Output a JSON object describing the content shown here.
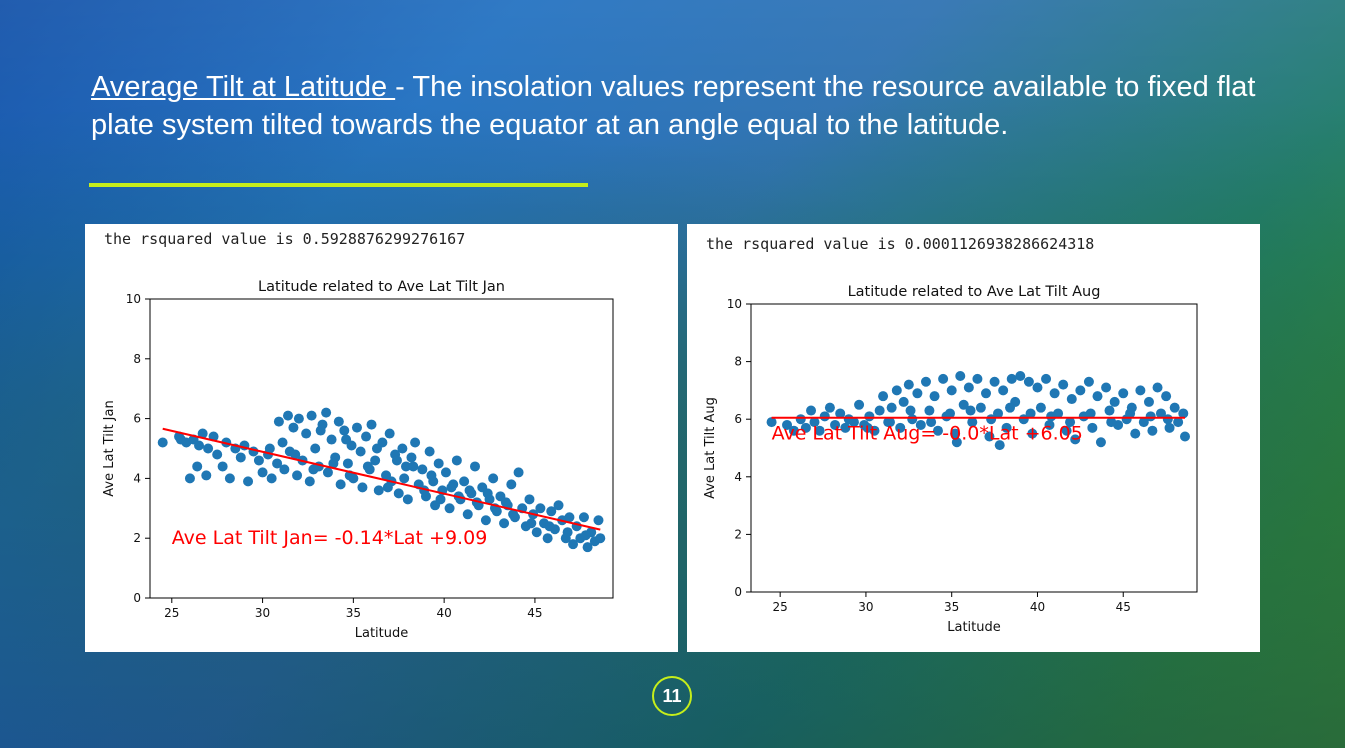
{
  "slide": {
    "heading_underlined": "Average Tilt at Latitude ",
    "heading_rest": "- The insolation values represent the resource available to fixed flat plate system tilted towards the equator at an angle equal to the latitude.",
    "page_number": "11",
    "colors": {
      "accent": "#c6ee1a",
      "point": "#1f77b4",
      "fit": "#ff0000",
      "annotation": "#ff0000"
    }
  },
  "chart_data": [
    {
      "type": "scatter",
      "rsquared_text": "the rsquared value is 0.5928876299276167",
      "title": "Latitude related to Ave Lat Tilt Jan",
      "xlabel": "Latitude",
      "ylabel": "Ave Lat Tilt Jan",
      "xlim": [
        23.8,
        49.3
      ],
      "ylim": [
        0,
        10
      ],
      "xticks": [
        25,
        30,
        35,
        40,
        45
      ],
      "yticks": [
        0,
        2,
        4,
        6,
        8,
        10
      ],
      "fit": {
        "slope": -0.14,
        "intercept": 9.09,
        "x": [
          24.5,
          48.6
        ]
      },
      "annotation": {
        "text": "Ave Lat Tilt Jan= -0.14*Lat +9.09",
        "x": 25.0,
        "y": 1.8
      },
      "points": [
        [
          24.5,
          5.2
        ],
        [
          25.4,
          5.4
        ],
        [
          25.5,
          5.3
        ],
        [
          25.8,
          5.2
        ],
        [
          26.0,
          4.0
        ],
        [
          26.2,
          5.3
        ],
        [
          26.4,
          4.4
        ],
        [
          26.5,
          5.1
        ],
        [
          26.7,
          5.5
        ],
        [
          26.9,
          4.1
        ],
        [
          27.0,
          5.0
        ],
        [
          27.3,
          5.4
        ],
        [
          27.5,
          4.8
        ],
        [
          27.8,
          4.4
        ],
        [
          28.0,
          5.2
        ],
        [
          28.2,
          4.0
        ],
        [
          28.5,
          5.0
        ],
        [
          28.8,
          4.7
        ],
        [
          29.0,
          5.1
        ],
        [
          29.2,
          3.9
        ],
        [
          29.5,
          4.9
        ],
        [
          29.8,
          4.6
        ],
        [
          30.0,
          4.2
        ],
        [
          30.3,
          4.8
        ],
        [
          30.5,
          4.0
        ],
        [
          30.8,
          4.5
        ],
        [
          30.9,
          5.9
        ],
        [
          31.2,
          4.3
        ],
        [
          31.4,
          6.1
        ],
        [
          31.5,
          4.9
        ],
        [
          31.7,
          5.7
        ],
        [
          31.9,
          4.1
        ],
        [
          32.0,
          6.0
        ],
        [
          32.2,
          4.6
        ],
        [
          32.4,
          5.5
        ],
        [
          32.6,
          3.9
        ],
        [
          32.7,
          6.1
        ],
        [
          32.9,
          5.0
        ],
        [
          33.1,
          4.4
        ],
        [
          33.3,
          5.8
        ],
        [
          33.5,
          6.2
        ],
        [
          33.6,
          4.2
        ],
        [
          33.8,
          5.3
        ],
        [
          34.0,
          4.7
        ],
        [
          34.2,
          5.9
        ],
        [
          34.3,
          3.8
        ],
        [
          34.5,
          5.6
        ],
        [
          34.7,
          4.5
        ],
        [
          34.9,
          5.1
        ],
        [
          35.0,
          4.0
        ],
        [
          35.2,
          5.7
        ],
        [
          35.4,
          4.9
        ],
        [
          35.5,
          3.7
        ],
        [
          35.7,
          5.4
        ],
        [
          35.9,
          4.3
        ],
        [
          36.0,
          5.8
        ],
        [
          36.2,
          4.6
        ],
        [
          36.4,
          3.6
        ],
        [
          36.6,
          5.2
        ],
        [
          36.8,
          4.1
        ],
        [
          37.0,
          5.5
        ],
        [
          37.1,
          3.9
        ],
        [
          37.3,
          4.8
        ],
        [
          37.5,
          3.5
        ],
        [
          37.7,
          5.0
        ],
        [
          37.9,
          4.4
        ],
        [
          38.0,
          3.3
        ],
        [
          38.2,
          4.7
        ],
        [
          38.4,
          5.2
        ],
        [
          38.6,
          3.8
        ],
        [
          38.8,
          4.3
        ],
        [
          39.0,
          3.4
        ],
        [
          39.2,
          4.9
        ],
        [
          39.4,
          3.9
        ],
        [
          39.5,
          3.1
        ],
        [
          39.7,
          4.5
        ],
        [
          39.9,
          3.6
        ],
        [
          40.1,
          4.2
        ],
        [
          40.3,
          3.0
        ],
        [
          40.5,
          3.8
        ],
        [
          40.7,
          4.6
        ],
        [
          40.9,
          3.3
        ],
        [
          41.1,
          3.9
        ],
        [
          41.3,
          2.8
        ],
        [
          41.5,
          3.5
        ],
        [
          41.7,
          4.4
        ],
        [
          41.9,
          3.1
        ],
        [
          42.1,
          3.7
        ],
        [
          42.3,
          2.6
        ],
        [
          42.5,
          3.3
        ],
        [
          42.7,
          4.0
        ],
        [
          42.9,
          2.9
        ],
        [
          43.1,
          3.4
        ],
        [
          43.3,
          2.5
        ],
        [
          43.5,
          3.1
        ],
        [
          43.7,
          3.8
        ],
        [
          43.9,
          2.7
        ],
        [
          44.1,
          4.2
        ],
        [
          44.3,
          3.0
        ],
        [
          44.5,
          2.4
        ],
        [
          44.7,
          3.3
        ],
        [
          44.9,
          2.8
        ],
        [
          45.1,
          2.2
        ],
        [
          45.3,
          3.0
        ],
        [
          45.5,
          2.5
        ],
        [
          45.7,
          2.0
        ],
        [
          45.9,
          2.9
        ],
        [
          46.1,
          2.3
        ],
        [
          46.3,
          3.1
        ],
        [
          46.5,
          2.6
        ],
        [
          46.7,
          2.0
        ],
        [
          46.9,
          2.7
        ],
        [
          47.1,
          1.8
        ],
        [
          47.3,
          2.4
        ],
        [
          47.5,
          2.0
        ],
        [
          47.7,
          2.7
        ],
        [
          47.9,
          1.7
        ],
        [
          48.1,
          2.2
        ],
        [
          48.3,
          1.9
        ],
        [
          48.5,
          2.6
        ],
        [
          48.6,
          2.0
        ],
        [
          31.8,
          4.8
        ],
        [
          32.8,
          4.3
        ],
        [
          33.9,
          4.5
        ],
        [
          34.8,
          4.1
        ],
        [
          35.8,
          4.4
        ],
        [
          36.9,
          3.7
        ],
        [
          37.8,
          4.0
        ],
        [
          38.9,
          3.6
        ],
        [
          39.8,
          3.3
        ],
        [
          40.8,
          3.4
        ],
        [
          41.8,
          3.2
        ],
        [
          42.8,
          3.0
        ],
        [
          43.8,
          2.8
        ],
        [
          44.8,
          2.5
        ],
        [
          45.8,
          2.4
        ],
        [
          46.8,
          2.2
        ],
        [
          47.8,
          2.1
        ],
        [
          30.4,
          5.0
        ],
        [
          31.1,
          5.2
        ],
        [
          33.2,
          5.6
        ],
        [
          34.6,
          5.3
        ],
        [
          36.3,
          5.0
        ],
        [
          37.4,
          4.6
        ],
        [
          38.3,
          4.4
        ],
        [
          39.3,
          4.1
        ],
        [
          40.4,
          3.7
        ],
        [
          41.4,
          3.6
        ],
        [
          42.4,
          3.5
        ],
        [
          43.4,
          3.2
        ]
      ]
    },
    {
      "type": "scatter",
      "rsquared_text": "the rsquared value is 0.0001126938286624318",
      "title": "Latitude related to Ave Lat Tilt Aug",
      "xlabel": "Latitude",
      "ylabel": "Ave Lat Tilt Aug",
      "xlim": [
        23.3,
        49.3
      ],
      "ylim": [
        0,
        10
      ],
      "xticks": [
        25,
        30,
        35,
        40,
        45
      ],
      "yticks": [
        0,
        2,
        4,
        6,
        8,
        10
      ],
      "fit": {
        "slope": -0.0,
        "intercept": 6.05,
        "x": [
          24.5,
          48.6
        ]
      },
      "annotation": {
        "text": "Ave Lat Tilt Aug= -0.0*Lat +6.05",
        "x": 24.5,
        "y": 5.3
      },
      "points": [
        [
          24.5,
          5.9
        ],
        [
          25.4,
          5.8
        ],
        [
          25.8,
          5.6
        ],
        [
          26.2,
          6.0
        ],
        [
          26.5,
          5.7
        ],
        [
          26.8,
          6.3
        ],
        [
          27.0,
          5.9
        ],
        [
          27.3,
          5.6
        ],
        [
          27.6,
          6.1
        ],
        [
          27.9,
          6.4
        ],
        [
          28.2,
          5.8
        ],
        [
          28.5,
          6.2
        ],
        [
          28.8,
          5.7
        ],
        [
          29.0,
          6.0
        ],
        [
          29.3,
          5.9
        ],
        [
          29.6,
          6.5
        ],
        [
          29.9,
          5.8
        ],
        [
          30.2,
          6.1
        ],
        [
          30.5,
          5.6
        ],
        [
          30.8,
          6.3
        ],
        [
          31.0,
          6.8
        ],
        [
          31.3,
          5.9
        ],
        [
          31.5,
          6.4
        ],
        [
          31.8,
          7.0
        ],
        [
          32.0,
          5.7
        ],
        [
          32.2,
          6.6
        ],
        [
          32.5,
          7.2
        ],
        [
          32.7,
          6.0
        ],
        [
          33.0,
          6.9
        ],
        [
          33.2,
          5.8
        ],
        [
          33.5,
          7.3
        ],
        [
          33.7,
          6.3
        ],
        [
          34.0,
          6.8
        ],
        [
          34.2,
          5.6
        ],
        [
          34.5,
          7.4
        ],
        [
          34.7,
          6.1
        ],
        [
          35.0,
          7.0
        ],
        [
          35.2,
          5.5
        ],
        [
          35.5,
          7.5
        ],
        [
          35.7,
          6.5
        ],
        [
          36.0,
          7.1
        ],
        [
          36.2,
          5.9
        ],
        [
          36.5,
          7.4
        ],
        [
          36.7,
          6.4
        ],
        [
          37.0,
          6.9
        ],
        [
          37.2,
          5.4
        ],
        [
          37.5,
          7.3
        ],
        [
          37.7,
          6.2
        ],
        [
          38.0,
          7.0
        ],
        [
          38.2,
          5.7
        ],
        [
          38.5,
          7.4
        ],
        [
          38.7,
          6.6
        ],
        [
          39.0,
          7.5
        ],
        [
          39.2,
          6.0
        ],
        [
          39.5,
          7.3
        ],
        [
          39.7,
          5.5
        ],
        [
          40.0,
          7.1
        ],
        [
          40.2,
          6.4
        ],
        [
          40.5,
          7.4
        ],
        [
          40.7,
          5.8
        ],
        [
          41.0,
          6.9
        ],
        [
          41.2,
          6.2
        ],
        [
          41.5,
          7.2
        ],
        [
          41.7,
          5.6
        ],
        [
          42.0,
          6.7
        ],
        [
          42.2,
          5.3
        ],
        [
          42.5,
          7.0
        ],
        [
          42.7,
          6.1
        ],
        [
          43.0,
          7.3
        ],
        [
          43.2,
          5.7
        ],
        [
          43.5,
          6.8
        ],
        [
          43.7,
          5.2
        ],
        [
          44.0,
          7.1
        ],
        [
          44.2,
          6.3
        ],
        [
          44.5,
          6.6
        ],
        [
          44.7,
          5.8
        ],
        [
          45.0,
          6.9
        ],
        [
          45.2,
          6.0
        ],
        [
          45.5,
          6.4
        ],
        [
          45.7,
          5.5
        ],
        [
          46.0,
          7.0
        ],
        [
          46.2,
          5.9
        ],
        [
          46.5,
          6.6
        ],
        [
          46.7,
          5.6
        ],
        [
          47.0,
          7.1
        ],
        [
          47.2,
          6.2
        ],
        [
          47.5,
          6.8
        ],
        [
          47.7,
          5.7
        ],
        [
          48.0,
          6.4
        ],
        [
          48.2,
          5.9
        ],
        [
          48.5,
          6.2
        ],
        [
          48.6,
          5.4
        ],
        [
          30.1,
          5.7
        ],
        [
          31.4,
          5.9
        ],
        [
          32.6,
          6.3
        ],
        [
          33.8,
          5.9
        ],
        [
          34.9,
          6.2
        ],
        [
          36.1,
          6.3
        ],
        [
          37.3,
          6.0
        ],
        [
          38.4,
          6.4
        ],
        [
          39.6,
          6.2
        ],
        [
          40.8,
          6.1
        ],
        [
          41.9,
          5.9
        ],
        [
          43.1,
          6.2
        ],
        [
          44.3,
          5.9
        ],
        [
          45.4,
          6.2
        ],
        [
          46.6,
          6.1
        ],
        [
          47.6,
          6.0
        ],
        [
          35.3,
          5.2
        ],
        [
          37.8,
          5.1
        ]
      ]
    }
  ]
}
